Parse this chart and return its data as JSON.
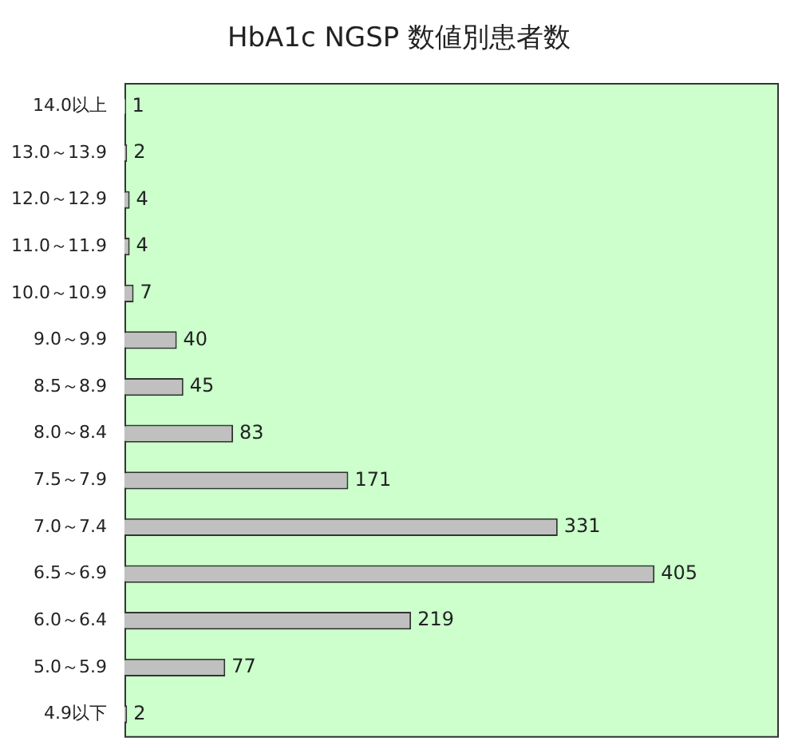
{
  "chart_data": {
    "type": "bar",
    "orientation": "horizontal",
    "title": "HbA1c NGSP 数値別患者数",
    "categories": [
      "14.0以上",
      "13.0～13.9",
      "12.0～12.9",
      "11.0～11.9",
      "10.0～10.9",
      "9.0～9.9",
      "8.5～8.9",
      "8.0～8.4",
      "7.5～7.9",
      "7.0～7.4",
      "6.5～6.9",
      "6.0～6.4",
      "5.0～5.9",
      "4.9以下"
    ],
    "values": [
      1,
      2,
      4,
      4,
      7,
      40,
      45,
      83,
      171,
      331,
      405,
      219,
      77,
      2
    ],
    "color": "#c0c0c0",
    "data_labels": true
  }
}
